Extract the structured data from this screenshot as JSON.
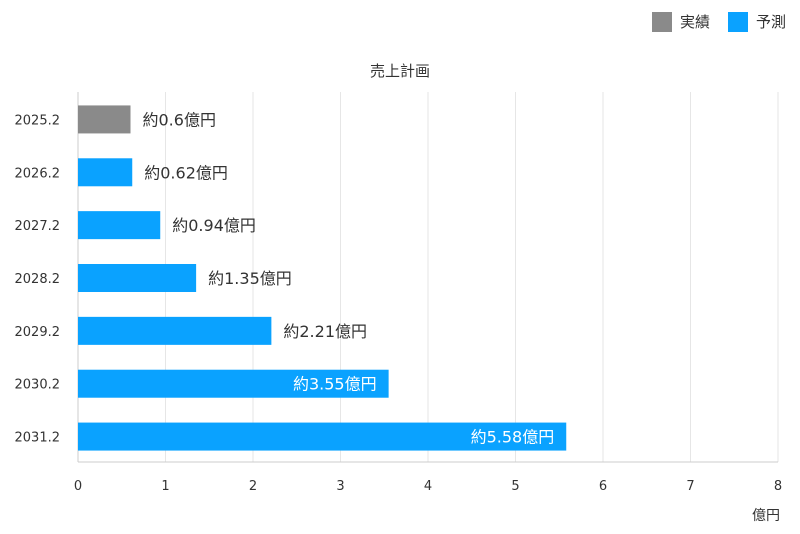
{
  "legend": {
    "actual_label": "実績",
    "forecast_label": "予測"
  },
  "colors": {
    "actual": "#8a8a8a",
    "forecast": "#0aa2ff",
    "grid": "#e6e6e6",
    "axis": "#cccccc",
    "text": "#333333",
    "label_inside": "#ffffff"
  },
  "chart_data": {
    "type": "bar",
    "orientation": "horizontal",
    "title": "売上計画",
    "xlabel": "億円",
    "ylabel": "",
    "xlim": [
      0,
      8
    ],
    "xticks": [
      "0",
      "1",
      "2",
      "3",
      "4",
      "5",
      "6",
      "7",
      "8"
    ],
    "categories": [
      "2025.2",
      "2026.2",
      "2027.2",
      "2028.2",
      "2029.2",
      "2030.2",
      "2031.2"
    ],
    "values": [
      0.6,
      0.62,
      0.94,
      1.35,
      2.21,
      3.55,
      5.58
    ],
    "series_type": [
      "actual",
      "forecast",
      "forecast",
      "forecast",
      "forecast",
      "forecast",
      "forecast"
    ],
    "data_labels": [
      "約0.6億円",
      "約0.62億円",
      "約0.94億円",
      "約1.35億円",
      "約2.21億円",
      "約3.55億円",
      "約5.58億円"
    ],
    "grid": true,
    "legend_position": "top-right"
  }
}
